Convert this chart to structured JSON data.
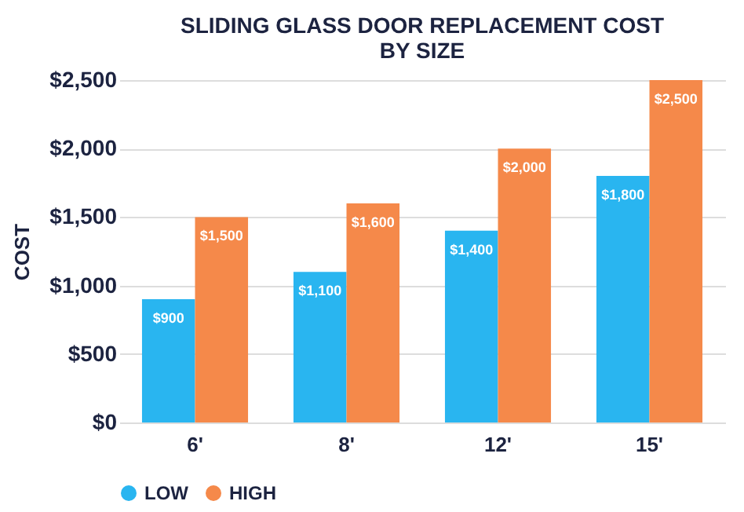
{
  "chart_data": {
    "type": "bar",
    "title": [
      "SLIDING GLASS DOOR REPLACEMENT COST",
      "BY SIZE"
    ],
    "ylabel": "COST",
    "categories": [
      "6'",
      "8'",
      "12'",
      "15'"
    ],
    "series": [
      {
        "name": "LOW",
        "color": "#29b5f0",
        "values": [
          900,
          1100,
          1400,
          1800
        ],
        "value_labels": [
          "$900",
          "$1,100",
          "$1,400",
          "$1,800"
        ]
      },
      {
        "name": "HIGH",
        "color": "#f5894a",
        "values": [
          1500,
          1600,
          2000,
          2500
        ],
        "value_labels": [
          "$1,500",
          "$1,600",
          "$2,000",
          "$2,500"
        ]
      }
    ],
    "ylim": [
      0,
      2500
    ],
    "yticks": [
      {
        "value": 0,
        "label": "$0"
      },
      {
        "value": 500,
        "label": "$500"
      },
      {
        "value": 1000,
        "label": "$1,000"
      },
      {
        "value": 1500,
        "label": "$1,500"
      },
      {
        "value": 2000,
        "label": "$2,000"
      },
      {
        "value": 2500,
        "label": "$2,500"
      }
    ],
    "grid": "y",
    "legend": "bottom"
  }
}
